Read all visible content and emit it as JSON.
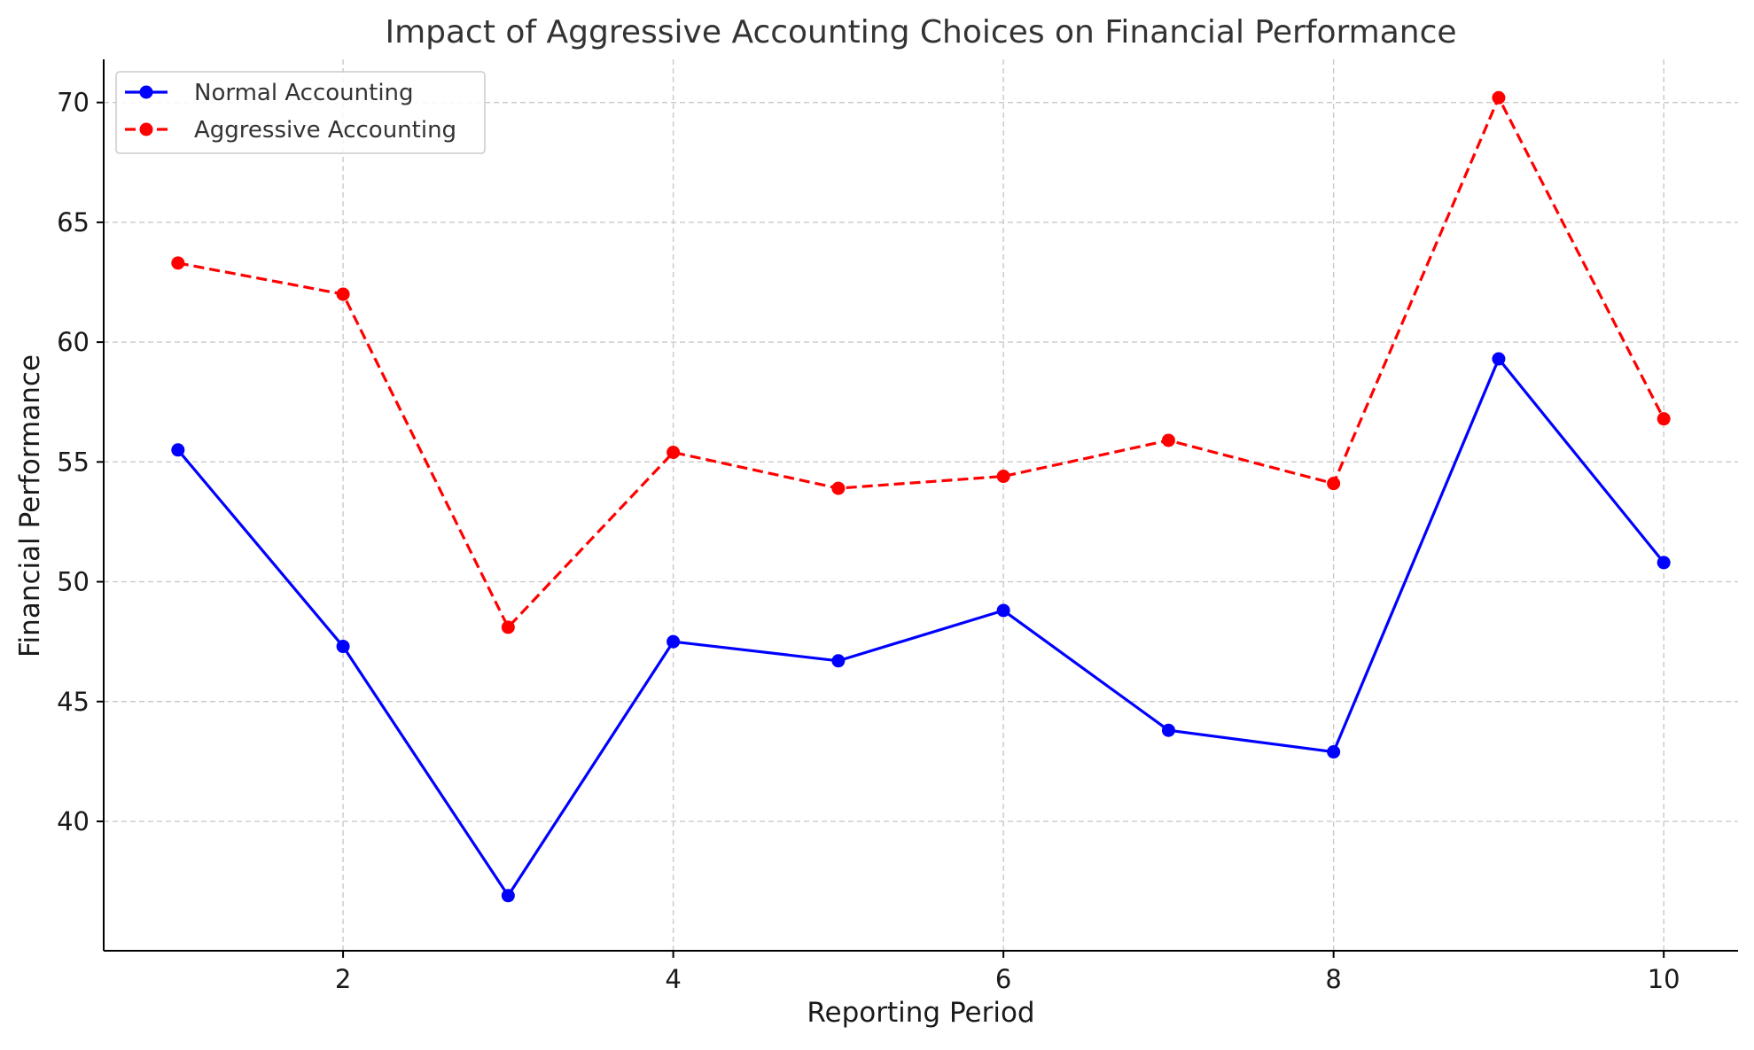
{
  "chart_data": {
    "type": "line",
    "title": "Impact of Aggressive Accounting Choices on Financial Performance",
    "xlabel": "Reporting Period",
    "ylabel": "Financial Performance",
    "x": [
      1,
      2,
      3,
      4,
      5,
      6,
      7,
      8,
      9,
      10
    ],
    "xticks": [
      2,
      4,
      6,
      8,
      10
    ],
    "yticks": [
      40,
      45,
      50,
      55,
      60,
      65,
      70
    ],
    "xlim": [
      0.55,
      10.45
    ],
    "ylim": [
      34.6,
      71.8
    ],
    "grid": true,
    "legend_position": "upper-left",
    "series": [
      {
        "name": "Normal Accounting",
        "values": [
          55.5,
          47.3,
          36.9,
          47.5,
          46.7,
          48.8,
          43.8,
          42.9,
          59.3,
          50.8
        ],
        "color": "#0000ff",
        "line_style": "solid",
        "marker": "circle"
      },
      {
        "name": "Aggressive Accounting",
        "values": [
          63.3,
          62.0,
          48.1,
          55.4,
          53.9,
          54.4,
          55.9,
          54.1,
          70.2,
          56.8
        ],
        "color": "#ff0000",
        "line_style": "dashed",
        "marker": "circle"
      }
    ]
  }
}
